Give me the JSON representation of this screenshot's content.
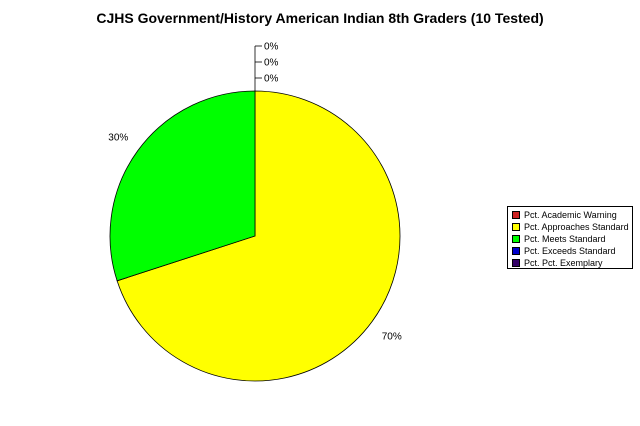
{
  "chart_data": {
    "type": "pie",
    "title": "CJHS Government/History American Indian 8th Graders (10 Tested)",
    "categories": [
      "Pct. Academic Warning",
      "Pct. Approaches Standard",
      "Pct. Meets Standard",
      "Pct. Exceeds Standard",
      "Pct. Pct. Exemplary"
    ],
    "values": [
      0,
      70,
      30,
      0,
      0
    ],
    "value_labels": [
      "0%",
      "70%",
      "30%",
      "0%",
      "0%"
    ],
    "colors": [
      "#cc2222",
      "#ffff00",
      "#00ff00",
      "#0000cc",
      "#330066"
    ],
    "legend_position": "right"
  }
}
